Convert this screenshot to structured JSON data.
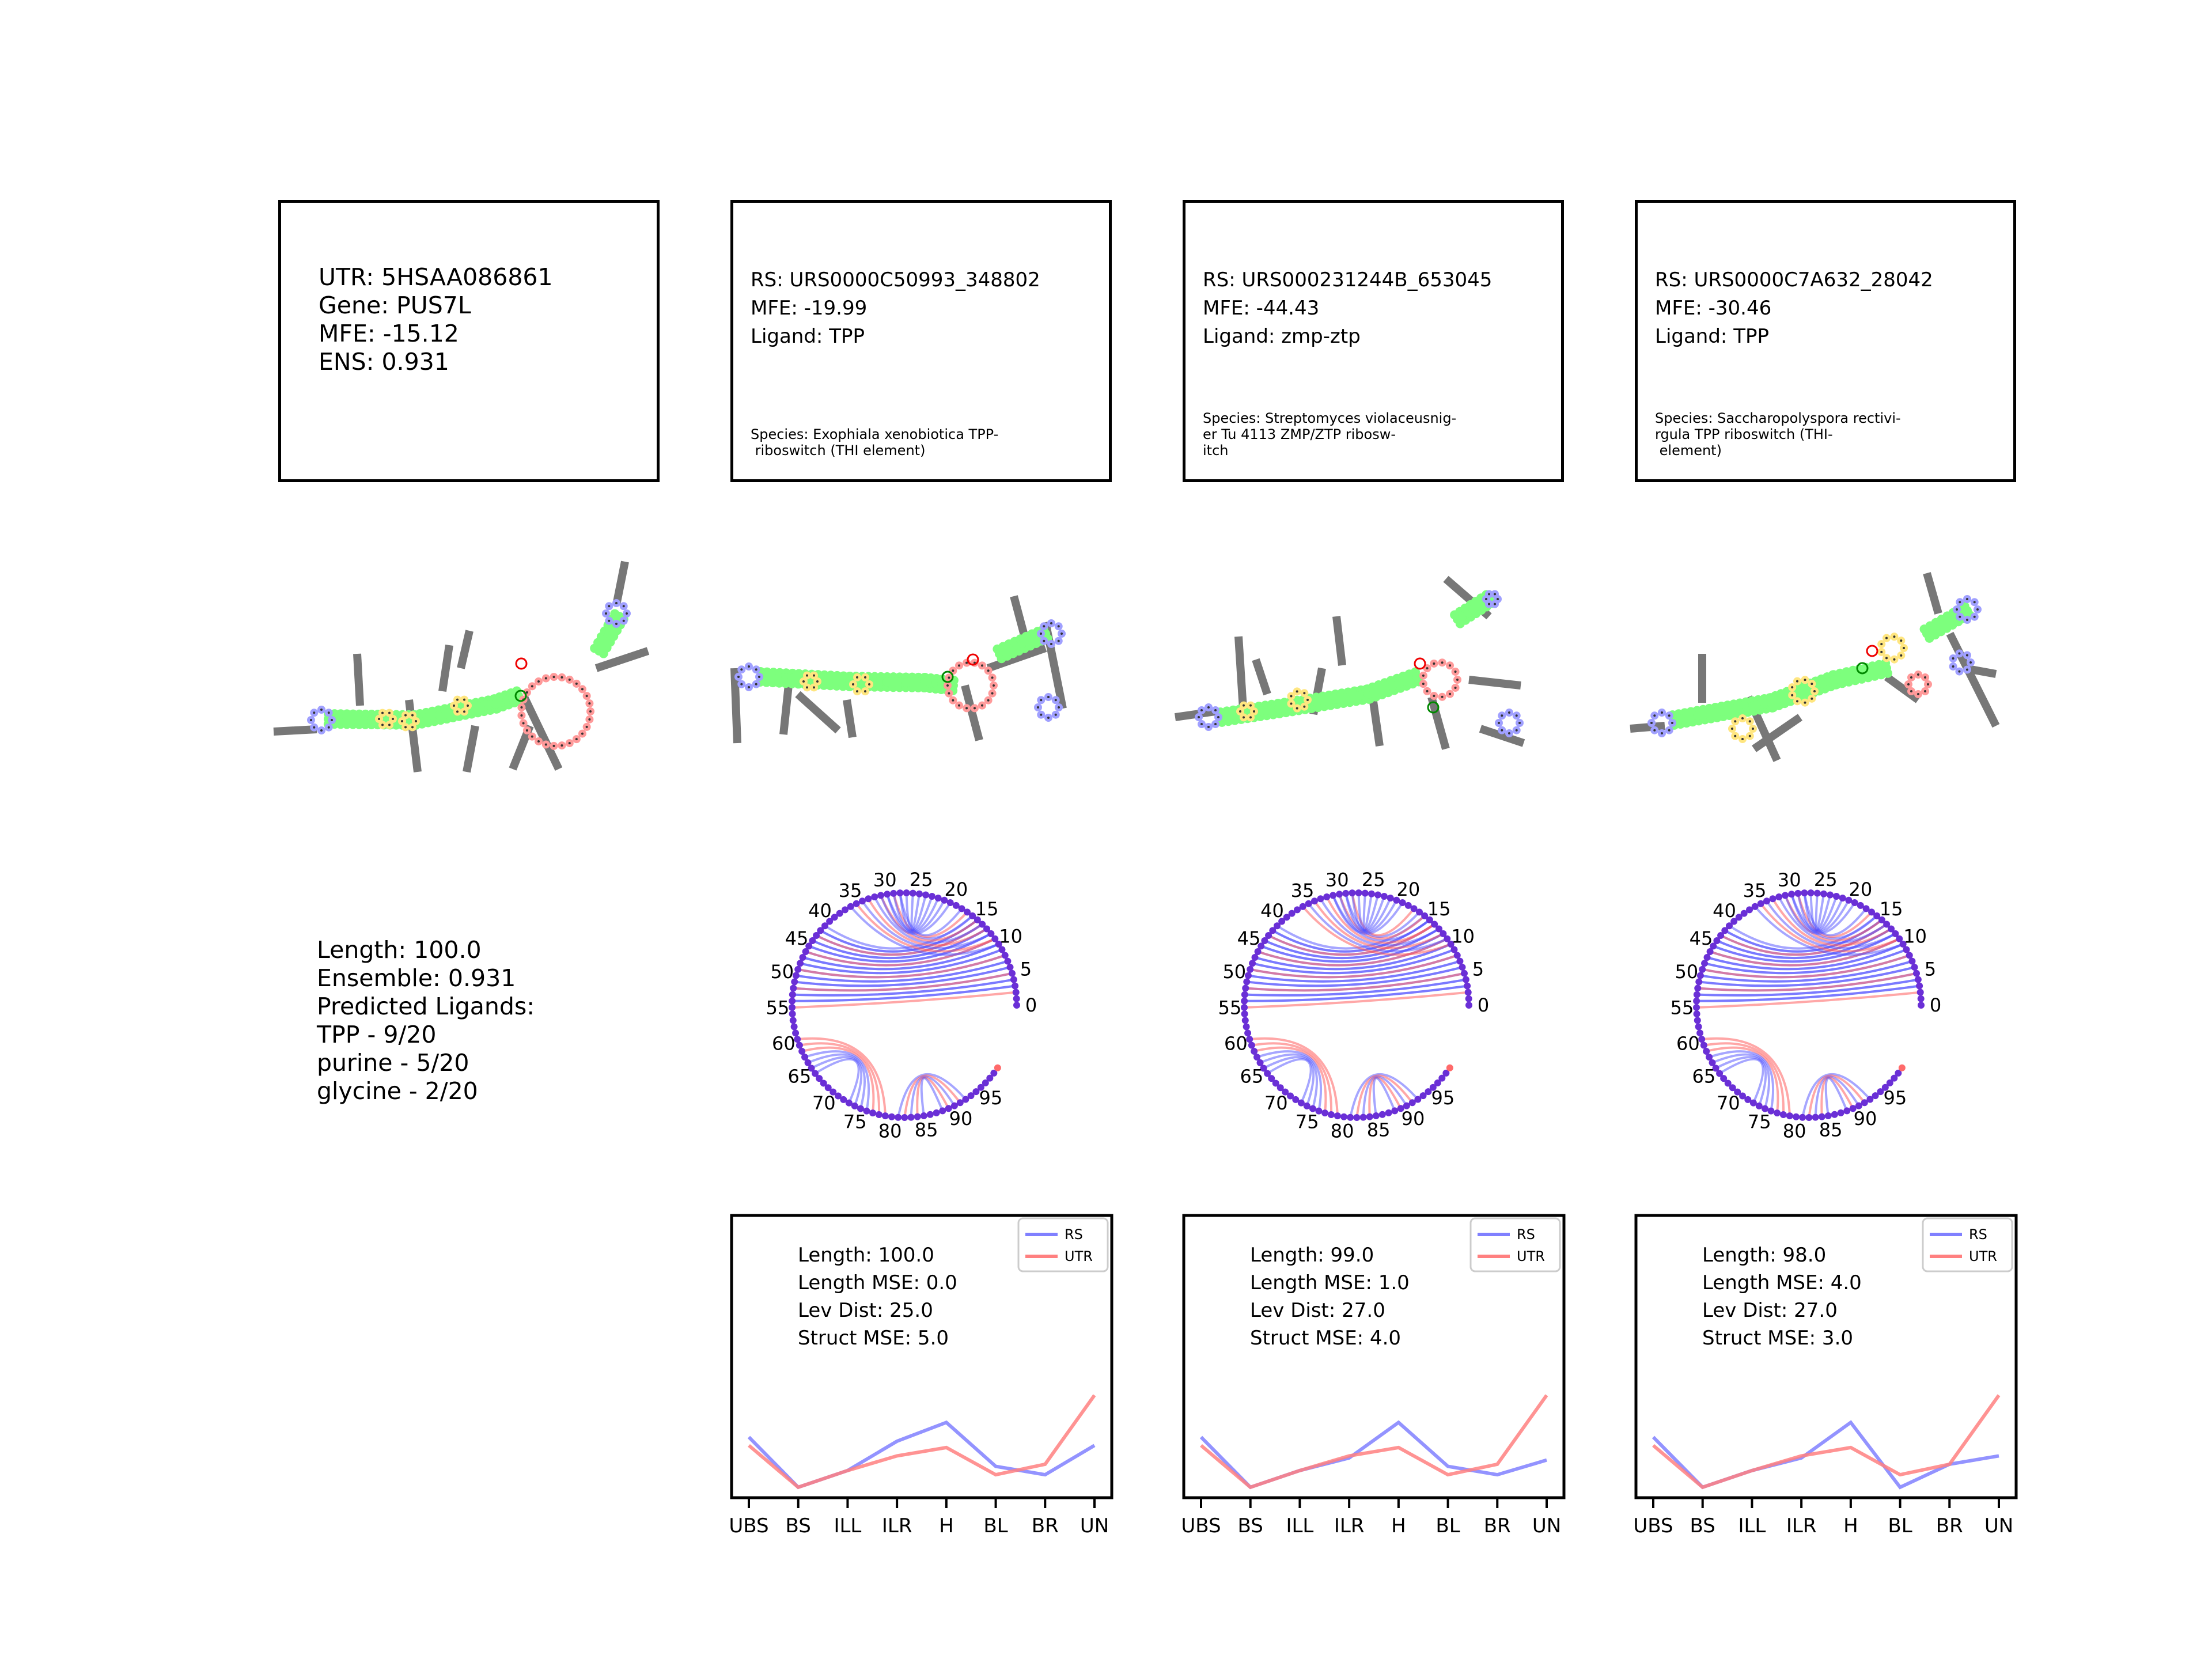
{
  "utr_box": {
    "lines": [
      "UTR: 5HSAA086861",
      "Gene: PUS7L",
      "MFE: -15.12",
      "ENS: 0.931"
    ]
  },
  "rs_boxes": [
    {
      "rs": "RS: URS0000C50993_348802",
      "mfe": "MFE: -19.99",
      "ligand": "Ligand: TPP",
      "species": [
        "Species: Exophiala xenobiotica TPP-",
        " riboswitch (THI element)"
      ]
    },
    {
      "rs": "RS: URS000231244B_653045",
      "mfe": "MFE: -44.43",
      "ligand": "Ligand: zmp-ztp",
      "species": [
        "Species: Streptomyces violaceusnig-",
        "er Tu 4113 ZMP/ZTP ribosw-",
        "itch"
      ]
    },
    {
      "rs": "RS: URS0000C7A632_28042",
      "mfe": "MFE: -30.46",
      "ligand": "Ligand: TPP",
      "species": [
        "Species: Saccharopolyspora rectivi-",
        "rgula TPP riboswitch (THI-",
        " element)"
      ]
    }
  ],
  "utr_summary": {
    "lines": [
      "Length: 100.0",
      "Ensemble: 0.931",
      "Predicted Ligands:",
      "TPP - 9/20",
      "purine - 5/20",
      "glycine - 2/20"
    ]
  },
  "colors": {
    "stem": "#7dff7d",
    "hairpin": "#a0a0ff",
    "interior": "#ffe680",
    "multiloop": "#ff9a9a",
    "rs_arc": "#4d4dff",
    "utr_arc": "#ff5050",
    "rs_line": "#8080ff",
    "utr_line": "#ff8080"
  },
  "icons": [
    "rna-secondary-structure",
    "arc-diagram"
  ],
  "arc_ticks": [
    "0",
    "5",
    "10",
    "15",
    "20",
    "25",
    "30",
    "35",
    "40",
    "45",
    "50",
    "55",
    "60",
    "65",
    "70",
    "75",
    "80",
    "85",
    "90",
    "95"
  ],
  "chart_data": [
    {
      "type": "line",
      "categories": [
        "UBS",
        "BS",
        "ILL",
        "ILR",
        "H",
        "BL",
        "BR",
        "UN"
      ],
      "series": [
        {
          "name": "RS",
          "values": [
            5.4,
            3.0,
            3.8,
            5.2,
            6.1,
            4.0,
            3.6,
            5.0
          ]
        },
        {
          "name": "UTR",
          "values": [
            5.0,
            3.0,
            3.8,
            4.5,
            4.9,
            3.6,
            4.1,
            7.4
          ]
        }
      ],
      "legend": "upper-right",
      "annotations": [
        "Length: 100.0",
        "Length MSE: 0.0",
        "Lev Dist: 25.0",
        "Struct MSE: 5.0"
      ]
    },
    {
      "type": "line",
      "categories": [
        "UBS",
        "BS",
        "ILL",
        "ILR",
        "H",
        "BL",
        "BR",
        "UN"
      ],
      "series": [
        {
          "name": "RS",
          "values": [
            5.4,
            3.0,
            3.8,
            4.4,
            6.1,
            4.0,
            3.6,
            4.3
          ]
        },
        {
          "name": "UTR",
          "values": [
            5.0,
            3.0,
            3.8,
            4.5,
            4.9,
            3.6,
            4.1,
            7.4
          ]
        }
      ],
      "legend": "upper-right",
      "annotations": [
        "Length: 99.0",
        "Length MSE: 1.0",
        "Lev Dist: 27.0",
        "Struct MSE: 4.0"
      ]
    },
    {
      "type": "line",
      "categories": [
        "UBS",
        "BS",
        "ILL",
        "ILR",
        "H",
        "BL",
        "BR",
        "UN"
      ],
      "series": [
        {
          "name": "RS",
          "values": [
            5.4,
            3.0,
            3.8,
            4.4,
            6.1,
            3.0,
            4.1,
            4.5
          ]
        },
        {
          "name": "UTR",
          "values": [
            5.0,
            3.0,
            3.8,
            4.5,
            4.9,
            3.6,
            4.1,
            7.4
          ]
        }
      ],
      "legend": "upper-right",
      "annotations": [
        "Length: 98.0",
        "Length MSE: 4.0",
        "Lev Dist: 27.0",
        "Struct MSE: 3.0"
      ]
    }
  ]
}
